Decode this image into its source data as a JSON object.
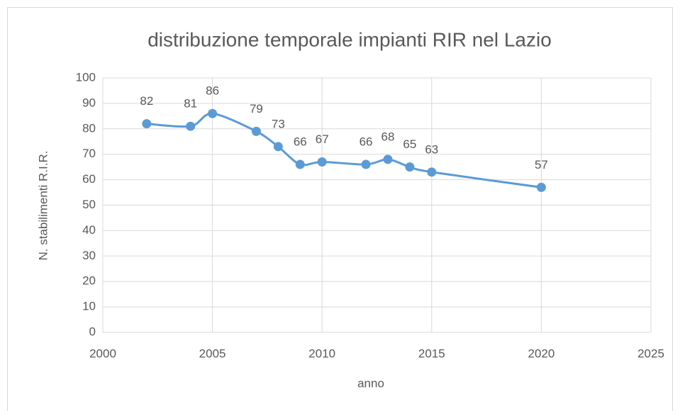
{
  "chart_data": {
    "type": "line",
    "title": "distribuzione temporale impianti RIR nel Lazio",
    "x_label": "anno",
    "y_label": "N. stabilimenti R.I.R.",
    "x": [
      2002,
      2004,
      2005,
      2007,
      2008,
      2009,
      2010,
      2012,
      2013,
      2014,
      2015,
      2020
    ],
    "values": [
      82,
      81,
      86,
      79,
      73,
      66,
      67,
      66,
      68,
      65,
      63,
      57
    ],
    "color": "#5b9bd5",
    "xlim": [
      2000,
      2025
    ],
    "xticks": [
      2000,
      2005,
      2010,
      2015,
      2020,
      2025
    ],
    "ylim": [
      0,
      100
    ],
    "yticks": [
      0,
      10,
      20,
      30,
      40,
      50,
      60,
      70,
      80,
      90,
      100
    ],
    "grid": true
  }
}
